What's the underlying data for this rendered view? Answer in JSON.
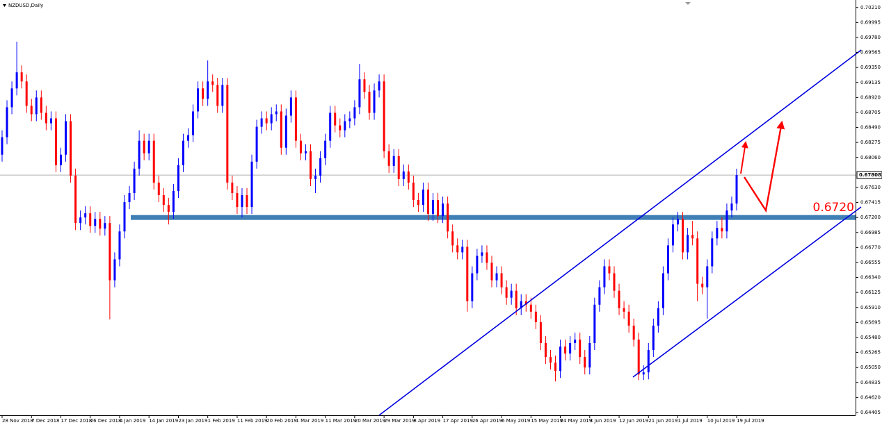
{
  "chart_data": {
    "type": "candlestick",
    "title": "NZDUSD,Daily",
    "up_color": "#0000ff",
    "down_color": "#ff0000",
    "ylim": [
      0.64365,
      0.70317
    ],
    "yticks": [
      {
        "value": 0.7021,
        "label": "0.70210"
      },
      0.69995,
      {
        "value": 0.6978,
        "label": "0.69780"
      },
      0.69565,
      {
        "value": 0.6935,
        "label": "0.69350"
      },
      0.69135,
      {
        "value": 0.6892,
        "label": "0.68920"
      },
      0.68705,
      {
        "value": 0.6849,
        "label": "0.68490"
      },
      0.68275,
      {
        "value": 0.6806,
        "label": "0.68060"
      },
      {
        "value": 0.6763,
        "label": "0.67630"
      },
      0.67415,
      {
        "value": 0.672,
        "label": "0.67200"
      },
      0.66985,
      {
        "value": 0.6677,
        "label": "0.66770"
      },
      0.66555,
      {
        "value": 0.6634,
        "label": "0.66340"
      },
      0.66125,
      {
        "value": 0.6591,
        "label": "0.65910"
      },
      0.65695,
      {
        "value": 0.6548,
        "label": "0.65480"
      },
      0.65265,
      {
        "value": 0.6505,
        "label": "0.65050"
      },
      0.64835,
      {
        "value": 0.6462,
        "label": "0.64620"
      },
      0.64405
    ],
    "last_price": 0.67808,
    "levels": [
      {
        "value": 0.672,
        "label": "0.6720",
        "color": "#3f7fb5",
        "label_color": "#ff0000"
      }
    ],
    "categories": [
      "28 Nov 2018",
      null,
      null,
      null,
      null,
      null,
      "7 Dec 2018",
      null,
      null,
      null,
      null,
      null,
      "17 Dec 2018",
      null,
      null,
      null,
      null,
      null,
      "26 Dec 2018",
      null,
      null,
      null,
      null,
      null,
      "4 Jan 2019",
      null,
      null,
      null,
      null,
      null,
      "14 Jan 2019",
      null,
      null,
      null,
      null,
      null,
      "23 Jan 2019",
      null,
      null,
      null,
      null,
      null,
      "1 Feb 2019",
      null,
      null,
      null,
      null,
      null,
      "11 Feb 2019",
      null,
      null,
      null,
      null,
      null,
      "20 Feb 2019",
      null,
      null,
      null,
      null,
      null,
      "1 Mar 2019",
      null,
      null,
      null,
      null,
      null,
      "11 Mar 2019",
      null,
      null,
      null,
      null,
      null,
      "20 Mar 2019",
      null,
      null,
      null,
      null,
      null,
      "29 Mar 2019",
      null,
      null,
      null,
      null,
      null,
      "8 Apr 2019",
      null,
      null,
      null,
      null,
      null,
      "17 Apr 2019",
      null,
      null,
      null,
      null,
      null,
      "26 Apr 2019",
      null,
      null,
      null,
      null,
      null,
      "6 May 2019",
      null,
      null,
      null,
      null,
      null,
      "15 May 2019",
      null,
      null,
      null,
      null,
      null,
      "24 May 2019",
      null,
      null,
      null,
      null,
      null,
      "3 Jun 2019",
      null,
      null,
      null,
      null,
      null,
      "12 Jun 2019",
      null,
      null,
      null,
      null,
      null,
      "21 Jun 2019",
      null,
      null,
      null,
      null,
      null,
      "1 Jul 2019",
      null,
      null,
      null,
      null,
      null,
      "10 Jul 2019",
      null,
      null,
      null,
      null,
      null,
      "19 Jul 2019"
    ],
    "open": [
      0.681,
      0.6835,
      0.6878,
      0.6905,
      0.6928,
      0.6915,
      0.688,
      0.6868,
      0.6892,
      0.687,
      0.6855,
      0.6862,
      0.6795,
      0.681,
      0.6858,
      0.678,
      0.6712,
      0.672,
      0.6726,
      0.6708,
      0.6718,
      0.6704,
      0.6712,
      0.663,
      0.666,
      0.67,
      0.6742,
      0.6755,
      0.679,
      0.683,
      0.6812,
      0.683,
      0.677,
      0.6752,
      0.6738,
      0.6728,
      0.6758,
      0.6795,
      0.683,
      0.6838,
      0.6872,
      0.6905,
      0.689,
      0.6915,
      0.691,
      0.688,
      0.691,
      0.677,
      0.6755,
      0.6735,
      0.6752,
      0.6735,
      0.68,
      0.685,
      0.6862,
      0.6855,
      0.6868,
      0.6872,
      0.682,
      0.6866,
      0.6892,
      0.683,
      0.6812,
      0.6815,
      0.6775,
      0.678,
      0.6805,
      0.683,
      0.687,
      0.6852,
      0.6845,
      0.6858,
      0.6862,
      0.6878,
      0.6918,
      0.69,
      0.687,
      0.6902,
      0.6915,
      0.6815,
      0.6794,
      0.6808,
      0.6775,
      0.6786,
      0.677,
      0.6745,
      0.6738,
      0.676,
      0.6725,
      0.6745,
      0.6722,
      0.674,
      0.67,
      0.668,
      0.667,
      0.6678,
      0.66,
      0.664,
      0.6665,
      0.667,
      0.6655,
      0.663,
      0.664,
      0.662,
      0.6605,
      0.6615,
      0.659,
      0.66,
      0.6595,
      0.6585,
      0.657,
      0.654,
      0.652,
      0.6512,
      0.65,
      0.6535,
      0.6525,
      0.654,
      0.6545,
      0.652,
      0.6505,
      0.654,
      0.6595,
      0.662,
      0.665,
      0.664,
      0.6615,
      0.659,
      0.6585,
      0.6565,
      0.6545,
      0.6495,
      0.6498,
      0.653,
      0.6565,
      0.659,
      0.664,
      0.668,
      0.671,
      0.6718,
      0.667,
      0.6695,
      0.669,
      0.6625,
      0.662,
      0.665,
      0.669,
      0.6705,
      0.67,
      0.673,
      0.674
    ],
    "high": [
      0.6845,
      0.6888,
      0.6915,
      0.6972,
      0.6938,
      0.6925,
      0.689,
      0.6902,
      0.6902,
      0.688,
      0.6872,
      0.6872,
      0.682,
      0.6868,
      0.6868,
      0.679,
      0.673,
      0.6736,
      0.6736,
      0.6728,
      0.6728,
      0.6722,
      0.6722,
      0.667,
      0.671,
      0.6752,
      0.6765,
      0.68,
      0.6845,
      0.684,
      0.684,
      0.684,
      0.678,
      0.6762,
      0.6748,
      0.6768,
      0.6805,
      0.684,
      0.6848,
      0.6882,
      0.6915,
      0.6915,
      0.6945,
      0.6925,
      0.692,
      0.692,
      0.692,
      0.678,
      0.6765,
      0.6762,
      0.6762,
      0.681,
      0.686,
      0.6872,
      0.6872,
      0.6878,
      0.6882,
      0.6882,
      0.6876,
      0.6902,
      0.6902,
      0.684,
      0.6825,
      0.6825,
      0.679,
      0.6815,
      0.684,
      0.688,
      0.688,
      0.6862,
      0.6868,
      0.6872,
      0.6888,
      0.694,
      0.6928,
      0.691,
      0.6912,
      0.6925,
      0.6925,
      0.6825,
      0.6818,
      0.6818,
      0.6796,
      0.6796,
      0.678,
      0.6755,
      0.677,
      0.677,
      0.6755,
      0.6755,
      0.675,
      0.675,
      0.671,
      0.669,
      0.6688,
      0.6688,
      0.665,
      0.6675,
      0.668,
      0.668,
      0.6665,
      0.665,
      0.665,
      0.663,
      0.6625,
      0.6625,
      0.661,
      0.661,
      0.6605,
      0.6595,
      0.658,
      0.655,
      0.653,
      0.6522,
      0.6545,
      0.6545,
      0.655,
      0.6555,
      0.6555,
      0.653,
      0.655,
      0.6605,
      0.663,
      0.666,
      0.666,
      0.665,
      0.6625,
      0.66,
      0.6595,
      0.6575,
      0.6555,
      0.6508,
      0.654,
      0.6575,
      0.66,
      0.665,
      0.669,
      0.672,
      0.6728,
      0.6728,
      0.6705,
      0.6715,
      0.67,
      0.6635,
      0.666,
      0.67,
      0.6715,
      0.672,
      0.674,
      0.675,
      0.679
    ],
    "low": [
      0.68,
      0.6825,
      0.6868,
      0.6895,
      0.6905,
      0.687,
      0.6858,
      0.6858,
      0.686,
      0.6845,
      0.6845,
      0.6785,
      0.6785,
      0.68,
      0.677,
      0.6702,
      0.6702,
      0.671,
      0.6698,
      0.6698,
      0.6694,
      0.6694,
      0.6574,
      0.662,
      0.665,
      0.669,
      0.6732,
      0.6745,
      0.678,
      0.6802,
      0.6802,
      0.676,
      0.6742,
      0.6728,
      0.671,
      0.6718,
      0.6748,
      0.6785,
      0.682,
      0.6828,
      0.6862,
      0.688,
      0.688,
      0.69,
      0.687,
      0.687,
      0.676,
      0.6745,
      0.6725,
      0.672,
      0.6725,
      0.6725,
      0.679,
      0.684,
      0.6845,
      0.6845,
      0.6858,
      0.681,
      0.681,
      0.6856,
      0.682,
      0.6802,
      0.6802,
      0.6765,
      0.6755,
      0.677,
      0.6795,
      0.682,
      0.6842,
      0.6835,
      0.6835,
      0.6848,
      0.6852,
      0.6868,
      0.689,
      0.686,
      0.686,
      0.6892,
      0.6805,
      0.6784,
      0.6784,
      0.6765,
      0.6765,
      0.676,
      0.6735,
      0.6728,
      0.6728,
      0.6715,
      0.6715,
      0.6712,
      0.6712,
      0.669,
      0.667,
      0.666,
      0.666,
      0.6585,
      0.659,
      0.663,
      0.6655,
      0.6645,
      0.662,
      0.662,
      0.661,
      0.6595,
      0.6595,
      0.658,
      0.658,
      0.6585,
      0.6575,
      0.656,
      0.653,
      0.651,
      0.6502,
      0.6485,
      0.649,
      0.6515,
      0.6515,
      0.653,
      0.651,
      0.6495,
      0.6495,
      0.653,
      0.6585,
      0.661,
      0.663,
      0.6605,
      0.658,
      0.6575,
      0.6555,
      0.6535,
      0.6487,
      0.6487,
      0.6488,
      0.652,
      0.6555,
      0.658,
      0.663,
      0.667,
      0.67,
      0.666,
      0.666,
      0.668,
      0.66,
      0.661,
      0.6575,
      0.664,
      0.668,
      0.669,
      0.669,
      0.672,
      0.673
    ],
    "close": [
      0.6835,
      0.6878,
      0.6905,
      0.6928,
      0.6915,
      0.688,
      0.6868,
      0.6892,
      0.687,
      0.6855,
      0.6862,
      0.6795,
      0.681,
      0.6858,
      0.678,
      0.6712,
      0.672,
      0.6726,
      0.6708,
      0.6718,
      0.6704,
      0.6712,
      0.663,
      0.666,
      0.67,
      0.6742,
      0.6755,
      0.679,
      0.683,
      0.6812,
      0.683,
      0.677,
      0.6752,
      0.6738,
      0.6728,
      0.6758,
      0.6795,
      0.683,
      0.6838,
      0.6872,
      0.6905,
      0.689,
      0.6915,
      0.691,
      0.688,
      0.691,
      0.677,
      0.6755,
      0.6735,
      0.6752,
      0.6735,
      0.68,
      0.685,
      0.6862,
      0.6855,
      0.6868,
      0.6872,
      0.682,
      0.6866,
      0.6892,
      0.683,
      0.6812,
      0.6815,
      0.6775,
      0.678,
      0.6805,
      0.683,
      0.687,
      0.6852,
      0.6845,
      0.6858,
      0.6862,
      0.6878,
      0.6918,
      0.69,
      0.687,
      0.6902,
      0.6915,
      0.6815,
      0.6794,
      0.6808,
      0.6775,
      0.6786,
      0.677,
      0.6745,
      0.6738,
      0.676,
      0.6725,
      0.6745,
      0.6722,
      0.674,
      0.67,
      0.668,
      0.667,
      0.6678,
      0.66,
      0.664,
      0.6665,
      0.667,
      0.6655,
      0.663,
      0.664,
      0.662,
      0.6605,
      0.6615,
      0.659,
      0.66,
      0.6595,
      0.6585,
      0.657,
      0.654,
      0.652,
      0.6512,
      0.65,
      0.6535,
      0.6525,
      0.654,
      0.6545,
      0.652,
      0.6505,
      0.654,
      0.6595,
      0.662,
      0.665,
      0.664,
      0.6615,
      0.659,
      0.6585,
      0.6565,
      0.6545,
      0.6495,
      0.6498,
      0.653,
      0.6565,
      0.659,
      0.664,
      0.668,
      0.671,
      0.6718,
      0.667,
      0.6695,
      0.669,
      0.6625,
      0.662,
      0.665,
      0.669,
      0.6705,
      0.67,
      0.673,
      0.674,
      0.67808
    ]
  }
}
